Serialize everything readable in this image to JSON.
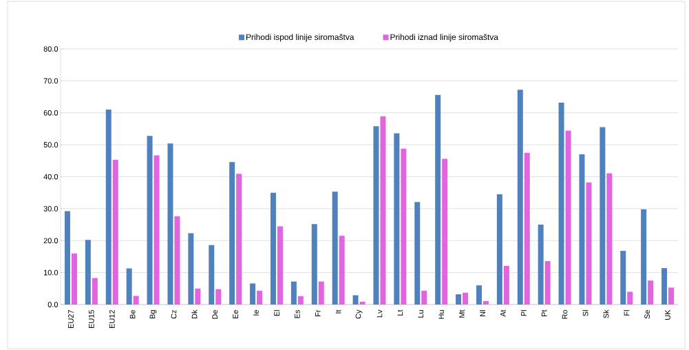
{
  "chart_data": {
    "type": "bar",
    "categories": [
      "EU27",
      "EU15",
      "EU12",
      "Be",
      "Bg",
      "Cz",
      "Dk",
      "De",
      "Ee",
      "Ie",
      "El",
      "Es",
      "Fr",
      "It",
      "Cy",
      "Lv",
      "Lt",
      "Lu",
      "Hu",
      "Mt",
      "Nl",
      "At",
      "Pl",
      "Pt",
      "Ro",
      "Sl",
      "Sk",
      "Fl",
      "Se",
      "UK"
    ],
    "series": [
      {
        "name": "Prihodi ispod linije siromaštva",
        "color": "#4f81bd",
        "values": [
          29.2,
          20.2,
          61.0,
          11.3,
          52.8,
          50.4,
          22.3,
          18.6,
          44.6,
          6.6,
          35.0,
          7.2,
          25.2,
          35.3,
          2.9,
          55.8,
          53.6,
          32.1,
          65.6,
          3.2,
          6.0,
          34.5,
          67.2,
          25.0,
          63.2,
          47.0,
          55.5,
          16.8,
          29.8,
          11.4
        ]
      },
      {
        "name": "Prihodi iznad linije siromaštva",
        "color": "#e065df",
        "values": [
          16.0,
          8.3,
          45.3,
          2.7,
          46.7,
          27.6,
          5.0,
          4.8,
          40.9,
          4.3,
          24.5,
          2.6,
          7.2,
          21.5,
          0.9,
          58.9,
          48.8,
          4.3,
          45.6,
          3.7,
          1.1,
          12.1,
          47.5,
          13.6,
          54.4,
          38.2,
          41.1,
          4.0,
          7.5,
          5.3
        ]
      }
    ],
    "ylim": [
      0,
      80
    ],
    "yticks": [
      {
        "value": 0,
        "label": "0.0"
      },
      {
        "value": 10,
        "label": "10.0"
      },
      {
        "value": 20,
        "label": "20.0"
      },
      {
        "value": 30,
        "label": "30.0"
      },
      {
        "value": 40,
        "label": "40.0"
      },
      {
        "value": 50,
        "label": "50.0"
      },
      {
        "value": 60,
        "label": "60.0"
      },
      {
        "value": 70,
        "label": "70.0"
      },
      {
        "value": 80,
        "label": "80.0"
      }
    ],
    "grid": "y",
    "legend": "top"
  }
}
